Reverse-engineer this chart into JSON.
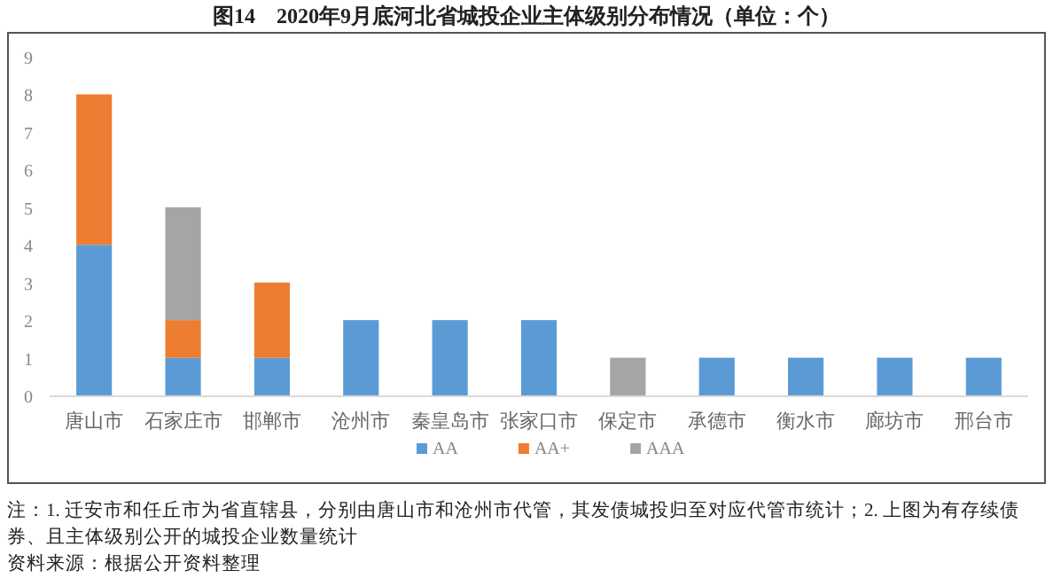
{
  "chart_data": {
    "type": "bar",
    "title": "图14　2020年9月底河北省城投企业主体级别分布情况（单位：个）",
    "categories": [
      "唐山市",
      "石家庄市",
      "邯郸市",
      "沧州市",
      "秦皇岛市",
      "张家口市",
      "保定市",
      "承德市",
      "衡水市",
      "廊坊市",
      "邢台市"
    ],
    "series": [
      {
        "name": "AA",
        "color": "#5b9bd5",
        "values": [
          4,
          1,
          1,
          2,
          2,
          2,
          0,
          1,
          1,
          1,
          1
        ]
      },
      {
        "name": "AA+",
        "color": "#ed7d31",
        "values": [
          4,
          1,
          2,
          0,
          0,
          0,
          0,
          0,
          0,
          0,
          0
        ]
      },
      {
        "name": "AAA",
        "color": "#a5a5a5",
        "values": [
          0,
          3,
          0,
          0,
          0,
          0,
          1,
          0,
          0,
          0,
          0
        ]
      }
    ],
    "stacked": true,
    "ylim": [
      0,
      9
    ],
    "yticks": [
      0,
      1,
      2,
      3,
      4,
      5,
      6,
      7,
      8,
      9
    ],
    "legend": "bottom",
    "annotations": [
      "注：1. 迁安市和任丘市为省直辖县，分别由唐山市和沧州市代管，其发债城投归至对应代管市统计；2. 上图为有存续债券、且主体级别公开的城投企业数量统计",
      "资料来源：根据公开资料整理"
    ]
  }
}
